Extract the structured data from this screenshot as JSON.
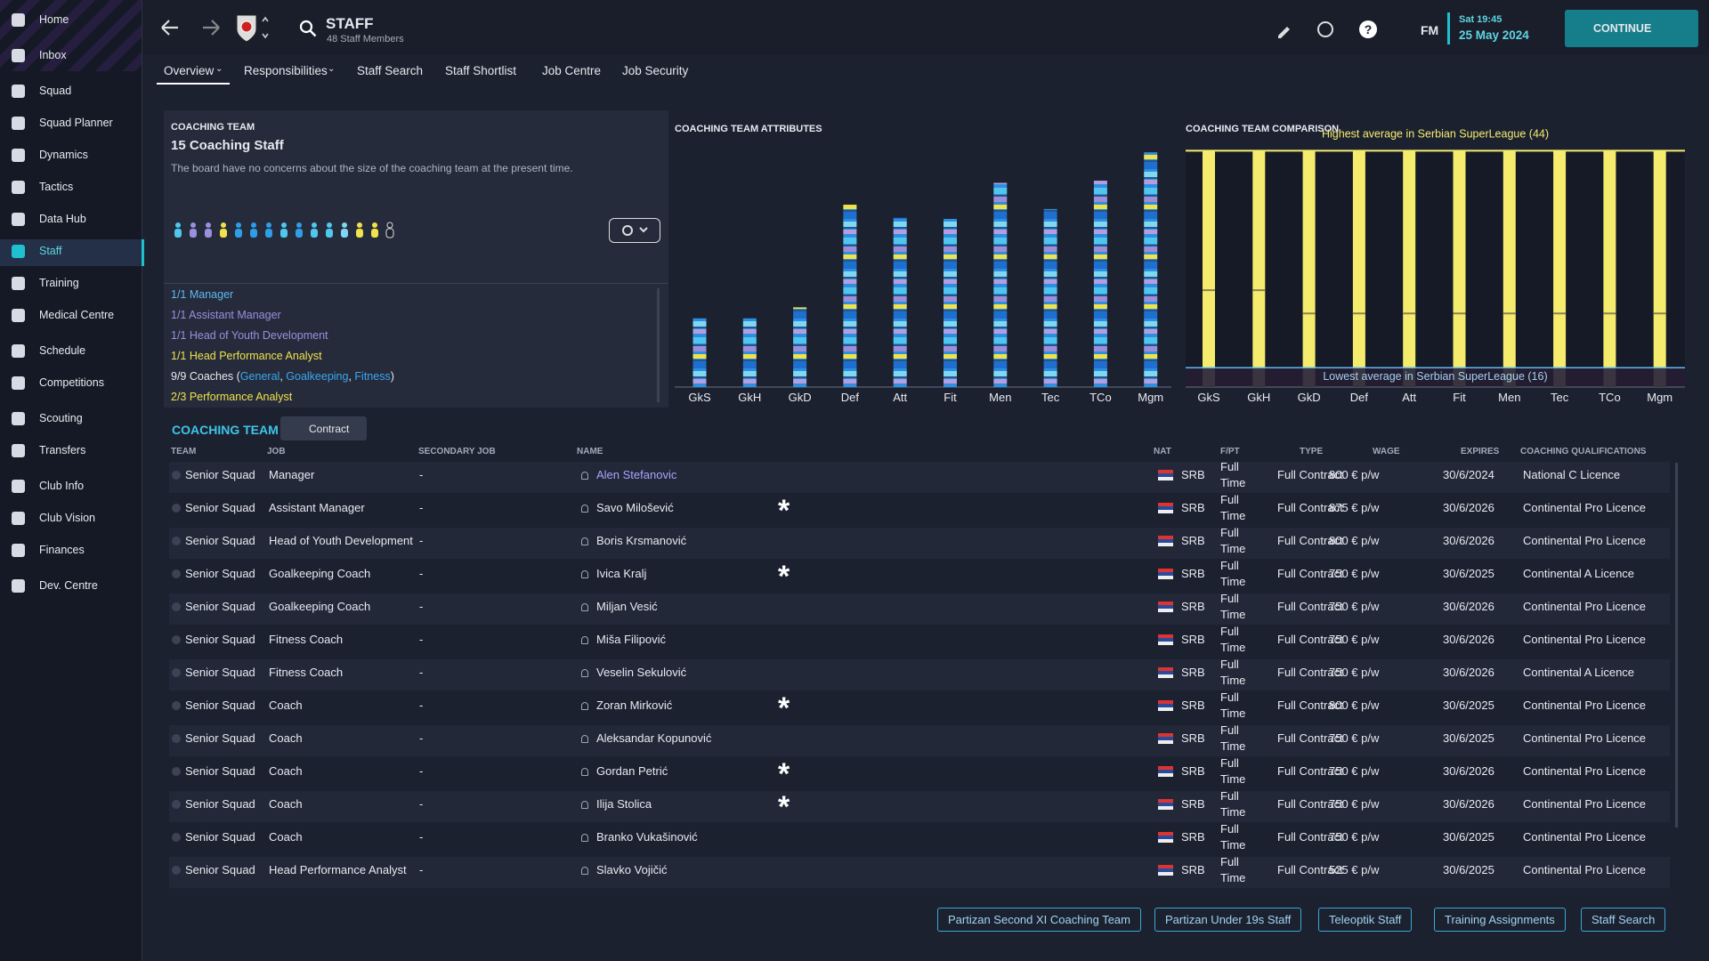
{
  "sidebar": {
    "items": [
      "Home",
      "Inbox",
      "Squad",
      "Squad Planner",
      "Dynamics",
      "Tactics",
      "Data Hub",
      "Staff",
      "Training",
      "Medical Centre",
      "Schedule",
      "Competitions",
      "Scouting",
      "Transfers",
      "Club Info",
      "Club Vision",
      "Finances",
      "Dev. Centre"
    ],
    "active": 7
  },
  "header": {
    "title": "STAFF",
    "subtitle": "48 Staff Members",
    "fm": "FM",
    "time": "Sat 19:45",
    "date": "25 May 2024",
    "continue": "CONTINUE"
  },
  "tabs": [
    "Overview",
    "Responsibilities",
    "Staff Search",
    "Staff Shortlist",
    "Job Centre",
    "Job Security"
  ],
  "panel": {
    "label": "COACHING TEAM",
    "title": "15 Coaching Staff",
    "text": "The board have no concerns about the size of the coaching team at the present time.",
    "list": [
      "1/1 Manager",
      "1/1 Assistant Manager",
      "1/1 Head of Youth Development",
      "1/1 Head Performance Analyst"
    ],
    "coaches": {
      "prefix": "9/9 Coaches (",
      "links": [
        "General",
        "Goalkeeping",
        "Fitness"
      ],
      "suffix": ")"
    },
    "analyst": "2/3 Performance Analyst"
  },
  "chart_data": [
    {
      "type": "bar",
      "title": "COACHING TEAM ATTRIBUTES",
      "categories": [
        "GkS",
        "GkH",
        "GkD",
        "Def",
        "Att",
        "Fit",
        "Men",
        "Tec",
        "TCo",
        "Mgm"
      ],
      "values": [
        63,
        63,
        73,
        167,
        155,
        154,
        187,
        163,
        189,
        215
      ],
      "ylim": [
        0,
        220
      ]
    },
    {
      "type": "bar",
      "title": "COACHING TEAM COMPARISON",
      "categories": [
        "GkS",
        "GkH",
        "GkD",
        "Def",
        "Att",
        "Fit",
        "Men",
        "Tec",
        "TCo",
        "Mgm"
      ],
      "values": [
        26,
        26,
        23,
        23,
        23,
        23,
        23,
        23,
        23,
        23
      ],
      "color": "#f5ec6e",
      "highest": 44,
      "lowest": 16,
      "ylim": [
        13.5,
        44.5
      ],
      "annotations": [
        "Highest average in Serbian SuperLeague (44)",
        "Lowest average in Serbian SuperLeague (16)"
      ]
    }
  ],
  "table": {
    "title": "COACHING TEAM",
    "filter": "Contract",
    "headers": [
      "TEAM",
      "JOB",
      "SECONDARY JOB",
      "NAME",
      "NAT",
      "F/PT",
      "TYPE",
      "WAGE",
      "EXPIRES",
      "COACHING QUALIFICATIONS"
    ],
    "rows": [
      {
        "cells": [
          "Senior Squad",
          "Manager",
          "-",
          "Alen Stefanovic",
          "SRB",
          "Full Time",
          "Full Contract",
          "800 € p/w",
          "30/6/2024",
          "National C Licence"
        ],
        "star": false
      },
      {
        "cells": [
          "Senior Squad",
          "Assistant Manager",
          "-",
          "Savo Milošević",
          "SRB",
          "Full Time",
          "Full Contract",
          "875 € p/w",
          "30/6/2026",
          "Continental Pro Licence"
        ],
        "star": true
      },
      {
        "cells": [
          "Senior Squad",
          "Head of Youth Development",
          "-",
          "Boris Krsmanović",
          "SRB",
          "Full Time",
          "Full Contract",
          "800 € p/w",
          "30/6/2026",
          "Continental Pro Licence"
        ],
        "star": false
      },
      {
        "cells": [
          "Senior Squad",
          "Goalkeeping Coach",
          "-",
          "Ivica Kralj",
          "SRB",
          "Full Time",
          "Full Contract",
          "750 € p/w",
          "30/6/2025",
          "Continental A Licence"
        ],
        "star": true
      },
      {
        "cells": [
          "Senior Squad",
          "Goalkeeping Coach",
          "-",
          "Miljan Vesić",
          "SRB",
          "Full Time",
          "Full Contract",
          "750 € p/w",
          "30/6/2026",
          "Continental Pro Licence"
        ],
        "star": false
      },
      {
        "cells": [
          "Senior Squad",
          "Fitness Coach",
          "-",
          "Miša Filipović",
          "SRB",
          "Full Time",
          "Full Contract",
          "750 € p/w",
          "30/6/2026",
          "Continental Pro Licence"
        ],
        "star": false
      },
      {
        "cells": [
          "Senior Squad",
          "Fitness Coach",
          "-",
          "Veselin Sekulović",
          "SRB",
          "Full Time",
          "Full Contract",
          "750 € p/w",
          "30/6/2026",
          "Continental A Licence"
        ],
        "star": false
      },
      {
        "cells": [
          "Senior Squad",
          "Coach",
          "-",
          "Zoran Mirković",
          "SRB",
          "Full Time",
          "Full Contract",
          "800 € p/w",
          "30/6/2025",
          "Continental Pro Licence"
        ],
        "star": true
      },
      {
        "cells": [
          "Senior Squad",
          "Coach",
          "-",
          "Aleksandar Kopunović",
          "SRB",
          "Full Time",
          "Full Contract",
          "750 € p/w",
          "30/6/2025",
          "Continental Pro Licence"
        ],
        "star": false
      },
      {
        "cells": [
          "Senior Squad",
          "Coach",
          "-",
          "Gordan Petrić",
          "SRB",
          "Full Time",
          "Full Contract",
          "750 € p/w",
          "30/6/2026",
          "Continental Pro Licence"
        ],
        "star": true
      },
      {
        "cells": [
          "Senior Squad",
          "Coach",
          "-",
          "Ilija Stolica",
          "SRB",
          "Full Time",
          "Full Contract",
          "750 € p/w",
          "30/6/2026",
          "Continental Pro Licence"
        ],
        "star": true
      },
      {
        "cells": [
          "Senior Squad",
          "Coach",
          "-",
          "Branko Vukašinović",
          "SRB",
          "Full Time",
          "Full Contract",
          "750 € p/w",
          "30/6/2025",
          "Continental Pro Licence"
        ],
        "star": false
      },
      {
        "cells": [
          "Senior Squad",
          "Head Performance Analyst",
          "-",
          "Slavko Vojičić",
          "SRB",
          "Full Time",
          "Full Contract",
          "525 € p/w",
          "30/6/2025",
          "Continental Pro Licence"
        ],
        "star": false
      }
    ]
  },
  "buttons": [
    "Partizan Second XI Coaching Team",
    "Partizan Under 19s Staff",
    "Teleoptik Staff",
    "Training Assignments",
    "Staff Search"
  ]
}
